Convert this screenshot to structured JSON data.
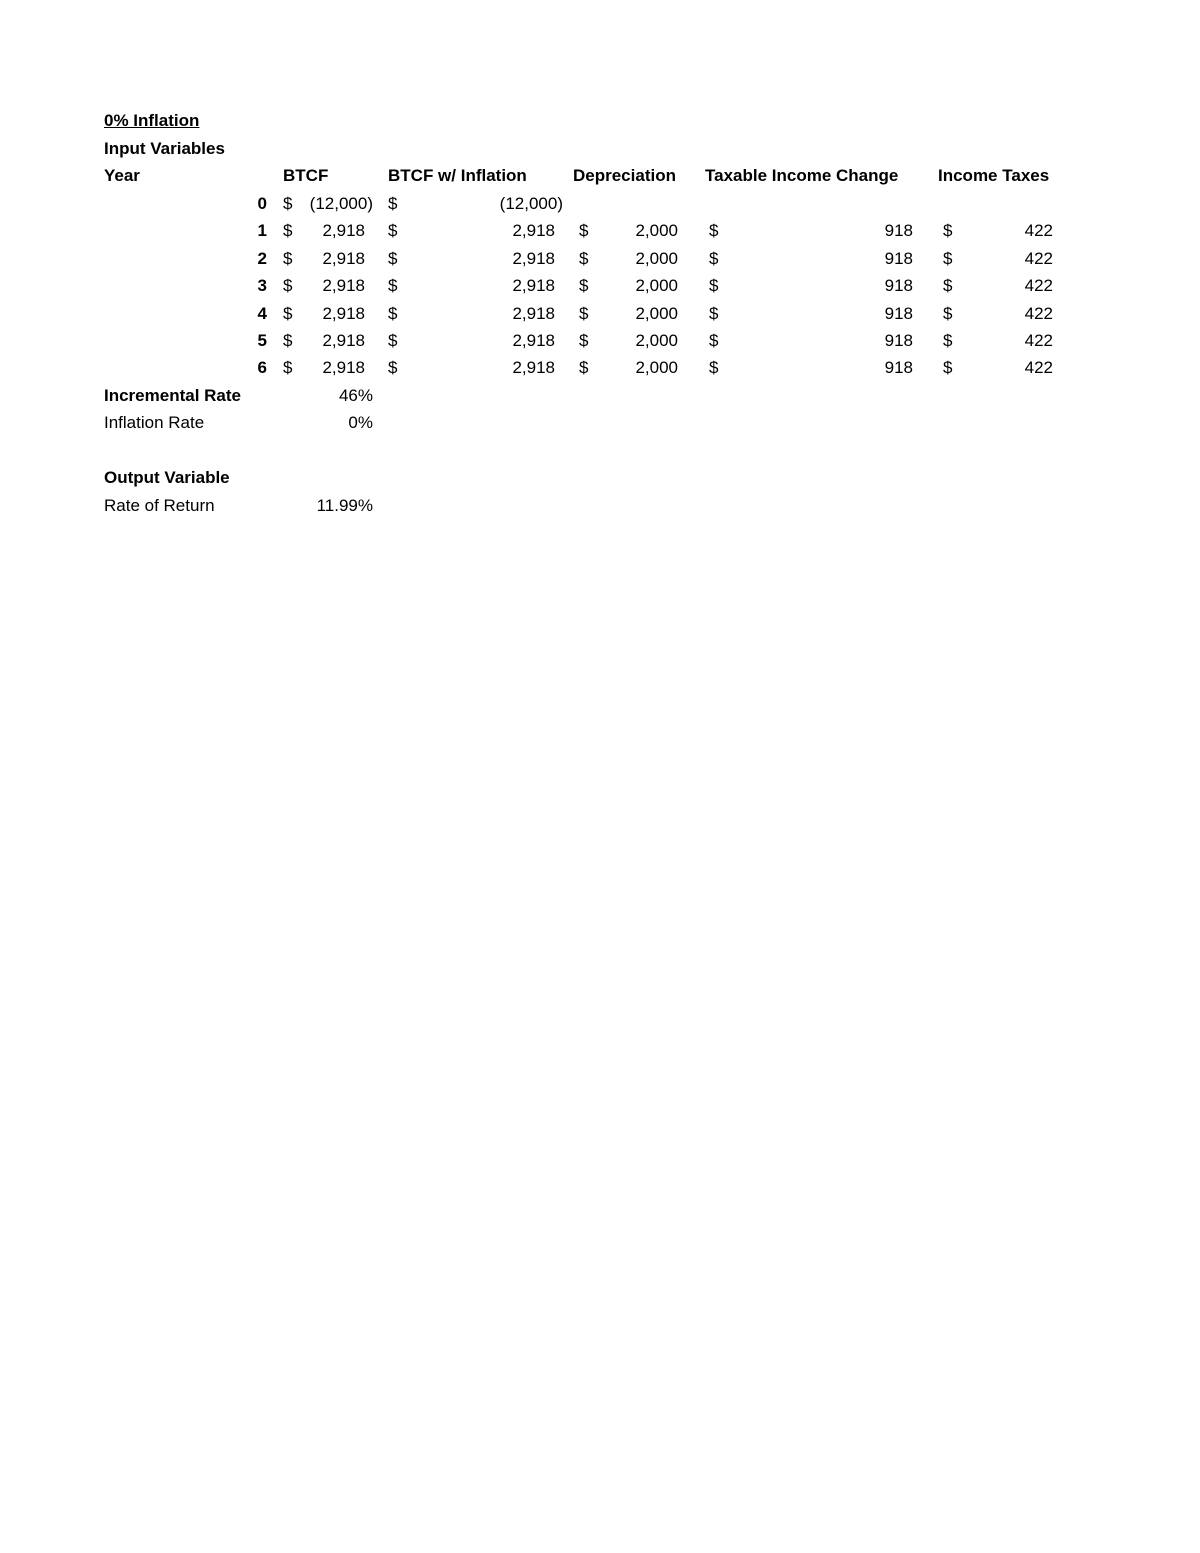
{
  "title": "0% Inflation",
  "section_input": "Input Variables",
  "headers": {
    "year": "Year",
    "btcf": "BTCF",
    "btcf_inflation": "BTCF w/ Inflation",
    "depreciation": "Depreciation",
    "taxable_income_change": "Taxable Income Change",
    "income_taxes": "Income Taxes"
  },
  "currency_symbol": "$",
  "rows": [
    {
      "year": "0",
      "btcf": "(12,000)",
      "btcf_inflation": "(12,000)",
      "depreciation": "",
      "taxable_income_change": "",
      "income_taxes": ""
    },
    {
      "year": "1",
      "btcf": "2,918",
      "btcf_inflation": "2,918",
      "depreciation": "2,000",
      "taxable_income_change": "918",
      "income_taxes": "422"
    },
    {
      "year": "2",
      "btcf": "2,918",
      "btcf_inflation": "2,918",
      "depreciation": "2,000",
      "taxable_income_change": "918",
      "income_taxes": "422"
    },
    {
      "year": "3",
      "btcf": "2,918",
      "btcf_inflation": "2,918",
      "depreciation": "2,000",
      "taxable_income_change": "918",
      "income_taxes": "422"
    },
    {
      "year": "4",
      "btcf": "2,918",
      "btcf_inflation": "2,918",
      "depreciation": "2,000",
      "taxable_income_change": "918",
      "income_taxes": "422"
    },
    {
      "year": "5",
      "btcf": "2,918",
      "btcf_inflation": "2,918",
      "depreciation": "2,000",
      "taxable_income_change": "918",
      "income_taxes": "422"
    },
    {
      "year": "6",
      "btcf": "2,918",
      "btcf_inflation": "2,918",
      "depreciation": "2,000",
      "taxable_income_change": "918",
      "income_taxes": "422"
    }
  ],
  "incremental_rate": {
    "label": "Incremental Rate",
    "value": "46%"
  },
  "inflation_rate": {
    "label": "Inflation Rate",
    "value": "0%"
  },
  "section_output": "Output Variable",
  "rate_of_return": {
    "label": "Rate of Return",
    "value": "11.99%"
  }
}
